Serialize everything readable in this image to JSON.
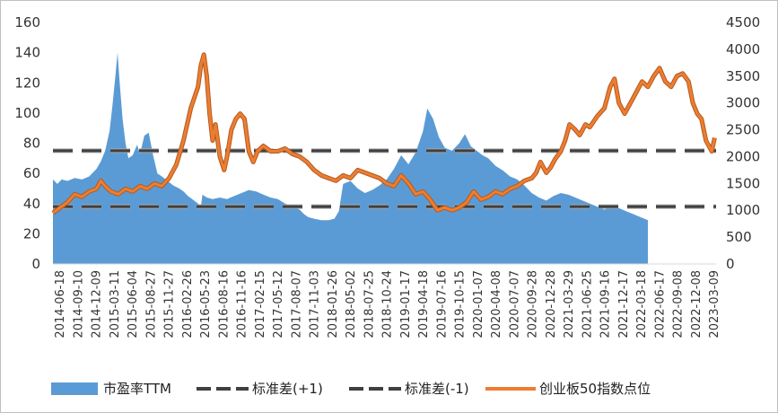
{
  "chart_data": {
    "type": "area+line",
    "title": "",
    "xlabel": "",
    "ylabel": "",
    "y_left": {
      "min": 0,
      "max": 160,
      "ticks": [
        0,
        20,
        40,
        60,
        80,
        100,
        120,
        140,
        160
      ]
    },
    "y_right": {
      "min": 0,
      "max": 4500,
      "ticks": [
        0,
        500,
        1000,
        1500,
        2000,
        2500,
        3000,
        3500,
        4000,
        4500
      ]
    },
    "x_labels": [
      "2014-06-18",
      "2014-09-10",
      "2014-12-09",
      "2015-03-11",
      "2015-06-04",
      "2015-08-27",
      "2015-11-27",
      "2016-02-26",
      "2016-05-23",
      "2016-08-16",
      "2016-11-16",
      "2017-02-15",
      "2017-05-12",
      "2017-08-07",
      "2017-11-03",
      "2018-01-26",
      "2018-05-02",
      "2018-07-25",
      "2018-10-24",
      "2019-01-17",
      "2019-04-18",
      "2019-07-16",
      "2019-10-15",
      "2020-01-07",
      "2020-04-08",
      "2020-07-07",
      "2020-09-28",
      "2020-12-28",
      "2021-03-29",
      "2021-06-25",
      "2021-09-16",
      "2021-12-17",
      "2022-03-18",
      "2022-06-17",
      "2022-09-08",
      "2022-12-08",
      "2023-03-09"
    ],
    "grid": false,
    "legend_position": "bottom",
    "series": [
      {
        "name": "市盈率TTM",
        "kind": "area",
        "axis": "left",
        "color": "#5b9bd5",
        "points": [
          [
            0,
            56
          ],
          [
            0.3,
            53
          ],
          [
            0.6,
            56
          ],
          [
            1,
            55
          ],
          [
            1.5,
            57
          ],
          [
            2,
            56
          ],
          [
            2.5,
            58
          ],
          [
            3,
            63
          ],
          [
            3.3,
            68
          ],
          [
            3.6,
            75
          ],
          [
            3.9,
            88
          ],
          [
            4.1,
            105
          ],
          [
            4.3,
            124
          ],
          [
            4.45,
            140
          ],
          [
            4.6,
            120
          ],
          [
            4.8,
            96
          ],
          [
            5,
            80
          ],
          [
            5.2,
            70
          ],
          [
            5.5,
            72
          ],
          [
            5.8,
            79
          ],
          [
            6.0,
            73
          ],
          [
            6.3,
            85
          ],
          [
            6.6,
            87
          ],
          [
            6.9,
            72
          ],
          [
            7.2,
            60
          ],
          [
            7.5,
            58
          ],
          [
            7.9,
            55
          ],
          [
            8.3,
            52
          ],
          [
            8.7,
            50
          ],
          [
            9,
            48
          ],
          [
            9.3,
            45
          ],
          [
            9.6,
            43
          ],
          [
            10,
            40
          ],
          [
            10.2,
            38
          ],
          [
            10.3,
            46
          ],
          [
            10.6,
            44
          ],
          [
            11,
            43
          ],
          [
            11.5,
            44
          ],
          [
            12,
            43
          ],
          [
            12.5,
            45
          ],
          [
            13,
            47
          ],
          [
            13.5,
            49
          ],
          [
            14,
            48
          ],
          [
            14.5,
            46
          ],
          [
            15,
            44
          ],
          [
            15.5,
            43
          ],
          [
            16,
            40
          ],
          [
            16.5,
            38
          ],
          [
            17,
            36
          ],
          [
            17.3,
            33
          ],
          [
            17.6,
            31
          ],
          [
            18,
            30
          ],
          [
            18.5,
            29
          ],
          [
            19,
            29
          ],
          [
            19.4,
            30
          ],
          [
            19.7,
            35
          ],
          [
            20,
            53
          ],
          [
            20.5,
            55
          ],
          [
            21,
            50
          ],
          [
            21.5,
            47
          ],
          [
            22,
            49
          ],
          [
            22.5,
            52
          ],
          [
            23,
            56
          ],
          [
            23.5,
            63
          ],
          [
            24,
            72
          ],
          [
            24.5,
            66
          ],
          [
            25,
            74
          ],
          [
            25.5,
            88
          ],
          [
            25.8,
            103
          ],
          [
            26.2,
            96
          ],
          [
            26.6,
            84
          ],
          [
            27,
            77
          ],
          [
            27.5,
            75
          ],
          [
            28,
            80
          ],
          [
            28.4,
            86
          ],
          [
            28.8,
            78
          ],
          [
            29.2,
            75
          ],
          [
            29.6,
            72
          ],
          [
            30,
            70
          ],
          [
            30.5,
            65
          ],
          [
            31,
            62
          ],
          [
            31.5,
            58
          ],
          [
            32,
            56
          ],
          [
            32.5,
            52
          ],
          [
            33,
            47
          ],
          [
            33.5,
            44
          ],
          [
            34,
            42
          ],
          [
            34.5,
            45
          ],
          [
            35,
            47
          ],
          [
            35.5,
            46
          ],
          [
            36,
            44
          ],
          [
            36.5,
            42
          ],
          [
            37,
            40
          ],
          [
            37.5,
            38
          ],
          [
            38,
            36
          ],
          [
            38.5,
            38
          ],
          [
            39,
            37
          ],
          [
            39.5,
            35
          ],
          [
            40,
            33
          ],
          [
            40.5,
            31
          ],
          [
            41,
            29
          ]
        ]
      },
      {
        "name": "标准差(+1)",
        "kind": "line-dashed",
        "axis": "left",
        "color": "#404040",
        "value": 75
      },
      {
        "name": "标准差(-1)",
        "kind": "line-dashed",
        "axis": "left",
        "color": "#404040",
        "value": 38
      },
      {
        "name": "创业板50指数点位",
        "kind": "line",
        "axis": "right",
        "color": "#ed7d31",
        "points": [
          [
            0,
            950
          ],
          [
            0.5,
            1050
          ],
          [
            1,
            1150
          ],
          [
            1.5,
            1300
          ],
          [
            2,
            1250
          ],
          [
            2.5,
            1350
          ],
          [
            3,
            1400
          ],
          [
            3.3,
            1550
          ],
          [
            3.6,
            1450
          ],
          [
            4,
            1350
          ],
          [
            4.5,
            1300
          ],
          [
            5,
            1400
          ],
          [
            5.5,
            1350
          ],
          [
            6,
            1450
          ],
          [
            6.5,
            1400
          ],
          [
            7,
            1500
          ],
          [
            7.5,
            1450
          ],
          [
            8,
            1600
          ],
          [
            8.5,
            1850
          ],
          [
            9,
            2300
          ],
          [
            9.5,
            2900
          ],
          [
            10,
            3300
          ],
          [
            10.2,
            3700
          ],
          [
            10.4,
            3900
          ],
          [
            10.6,
            3500
          ],
          [
            10.8,
            2800
          ],
          [
            11,
            2300
          ],
          [
            11.2,
            2600
          ],
          [
            11.5,
            2000
          ],
          [
            11.8,
            1750
          ],
          [
            12,
            2000
          ],
          [
            12.3,
            2500
          ],
          [
            12.6,
            2700
          ],
          [
            12.9,
            2800
          ],
          [
            13.2,
            2700
          ],
          [
            13.5,
            2100
          ],
          [
            13.8,
            1900
          ],
          [
            14.1,
            2100
          ],
          [
            14.5,
            2200
          ],
          [
            15,
            2100
          ],
          [
            15.5,
            2100
          ],
          [
            16,
            2150
          ],
          [
            16.5,
            2050
          ],
          [
            17,
            2000
          ],
          [
            17.5,
            1900
          ],
          [
            18,
            1750
          ],
          [
            18.5,
            1650
          ],
          [
            19,
            1600
          ],
          [
            19.5,
            1550
          ],
          [
            20,
            1650
          ],
          [
            20.5,
            1600
          ],
          [
            21,
            1750
          ],
          [
            21.5,
            1700
          ],
          [
            22,
            1650
          ],
          [
            22.5,
            1600
          ],
          [
            23,
            1500
          ],
          [
            23.5,
            1450
          ],
          [
            24,
            1650
          ],
          [
            24.5,
            1500
          ],
          [
            25,
            1300
          ],
          [
            25.5,
            1350
          ],
          [
            26,
            1200
          ],
          [
            26.5,
            1000
          ],
          [
            27,
            1050
          ],
          [
            27.5,
            1000
          ],
          [
            28,
            1050
          ],
          [
            28.5,
            1150
          ],
          [
            29,
            1350
          ],
          [
            29.5,
            1200
          ],
          [
            30,
            1250
          ],
          [
            30.5,
            1350
          ],
          [
            31,
            1300
          ],
          [
            31.5,
            1400
          ],
          [
            32,
            1450
          ],
          [
            32.5,
            1550
          ],
          [
            33,
            1600
          ],
          [
            33.3,
            1700
          ],
          [
            33.6,
            1900
          ],
          [
            34,
            1700
          ],
          [
            34.3,
            1800
          ],
          [
            34.6,
            1950
          ],
          [
            35,
            2100
          ],
          [
            35.3,
            2300
          ],
          [
            35.6,
            2600
          ],
          [
            36,
            2500
          ],
          [
            36.3,
            2400
          ],
          [
            36.7,
            2600
          ],
          [
            37,
            2550
          ],
          [
            37.5,
            2750
          ],
          [
            38,
            2900
          ],
          [
            38.4,
            3300
          ],
          [
            38.7,
            3450
          ],
          [
            39,
            3000
          ],
          [
            39.4,
            2800
          ],
          [
            39.8,
            3000
          ],
          [
            40.2,
            3200
          ],
          [
            40.6,
            3400
          ],
          [
            41,
            3300
          ],
          [
            41.4,
            3500
          ],
          [
            41.8,
            3650
          ],
          [
            42.2,
            3400
          ],
          [
            42.6,
            3300
          ],
          [
            43,
            3500
          ],
          [
            43.4,
            3550
          ],
          [
            43.8,
            3400
          ],
          [
            44.1,
            3000
          ],
          [
            44.4,
            2800
          ],
          [
            44.7,
            2700
          ],
          [
            45,
            2300
          ],
          [
            45.2,
            2200
          ],
          [
            45.4,
            2100
          ],
          [
            45.6,
            2350
          ]
        ]
      }
    ]
  },
  "legend": [
    {
      "key": "pe",
      "label": "市盈率TTM"
    },
    {
      "key": "sd_plus",
      "label": "标准差(+1)"
    },
    {
      "key": "sd_minus",
      "label": "标准差(-1)"
    },
    {
      "key": "index",
      "label": "创业板50指数点位"
    }
  ]
}
